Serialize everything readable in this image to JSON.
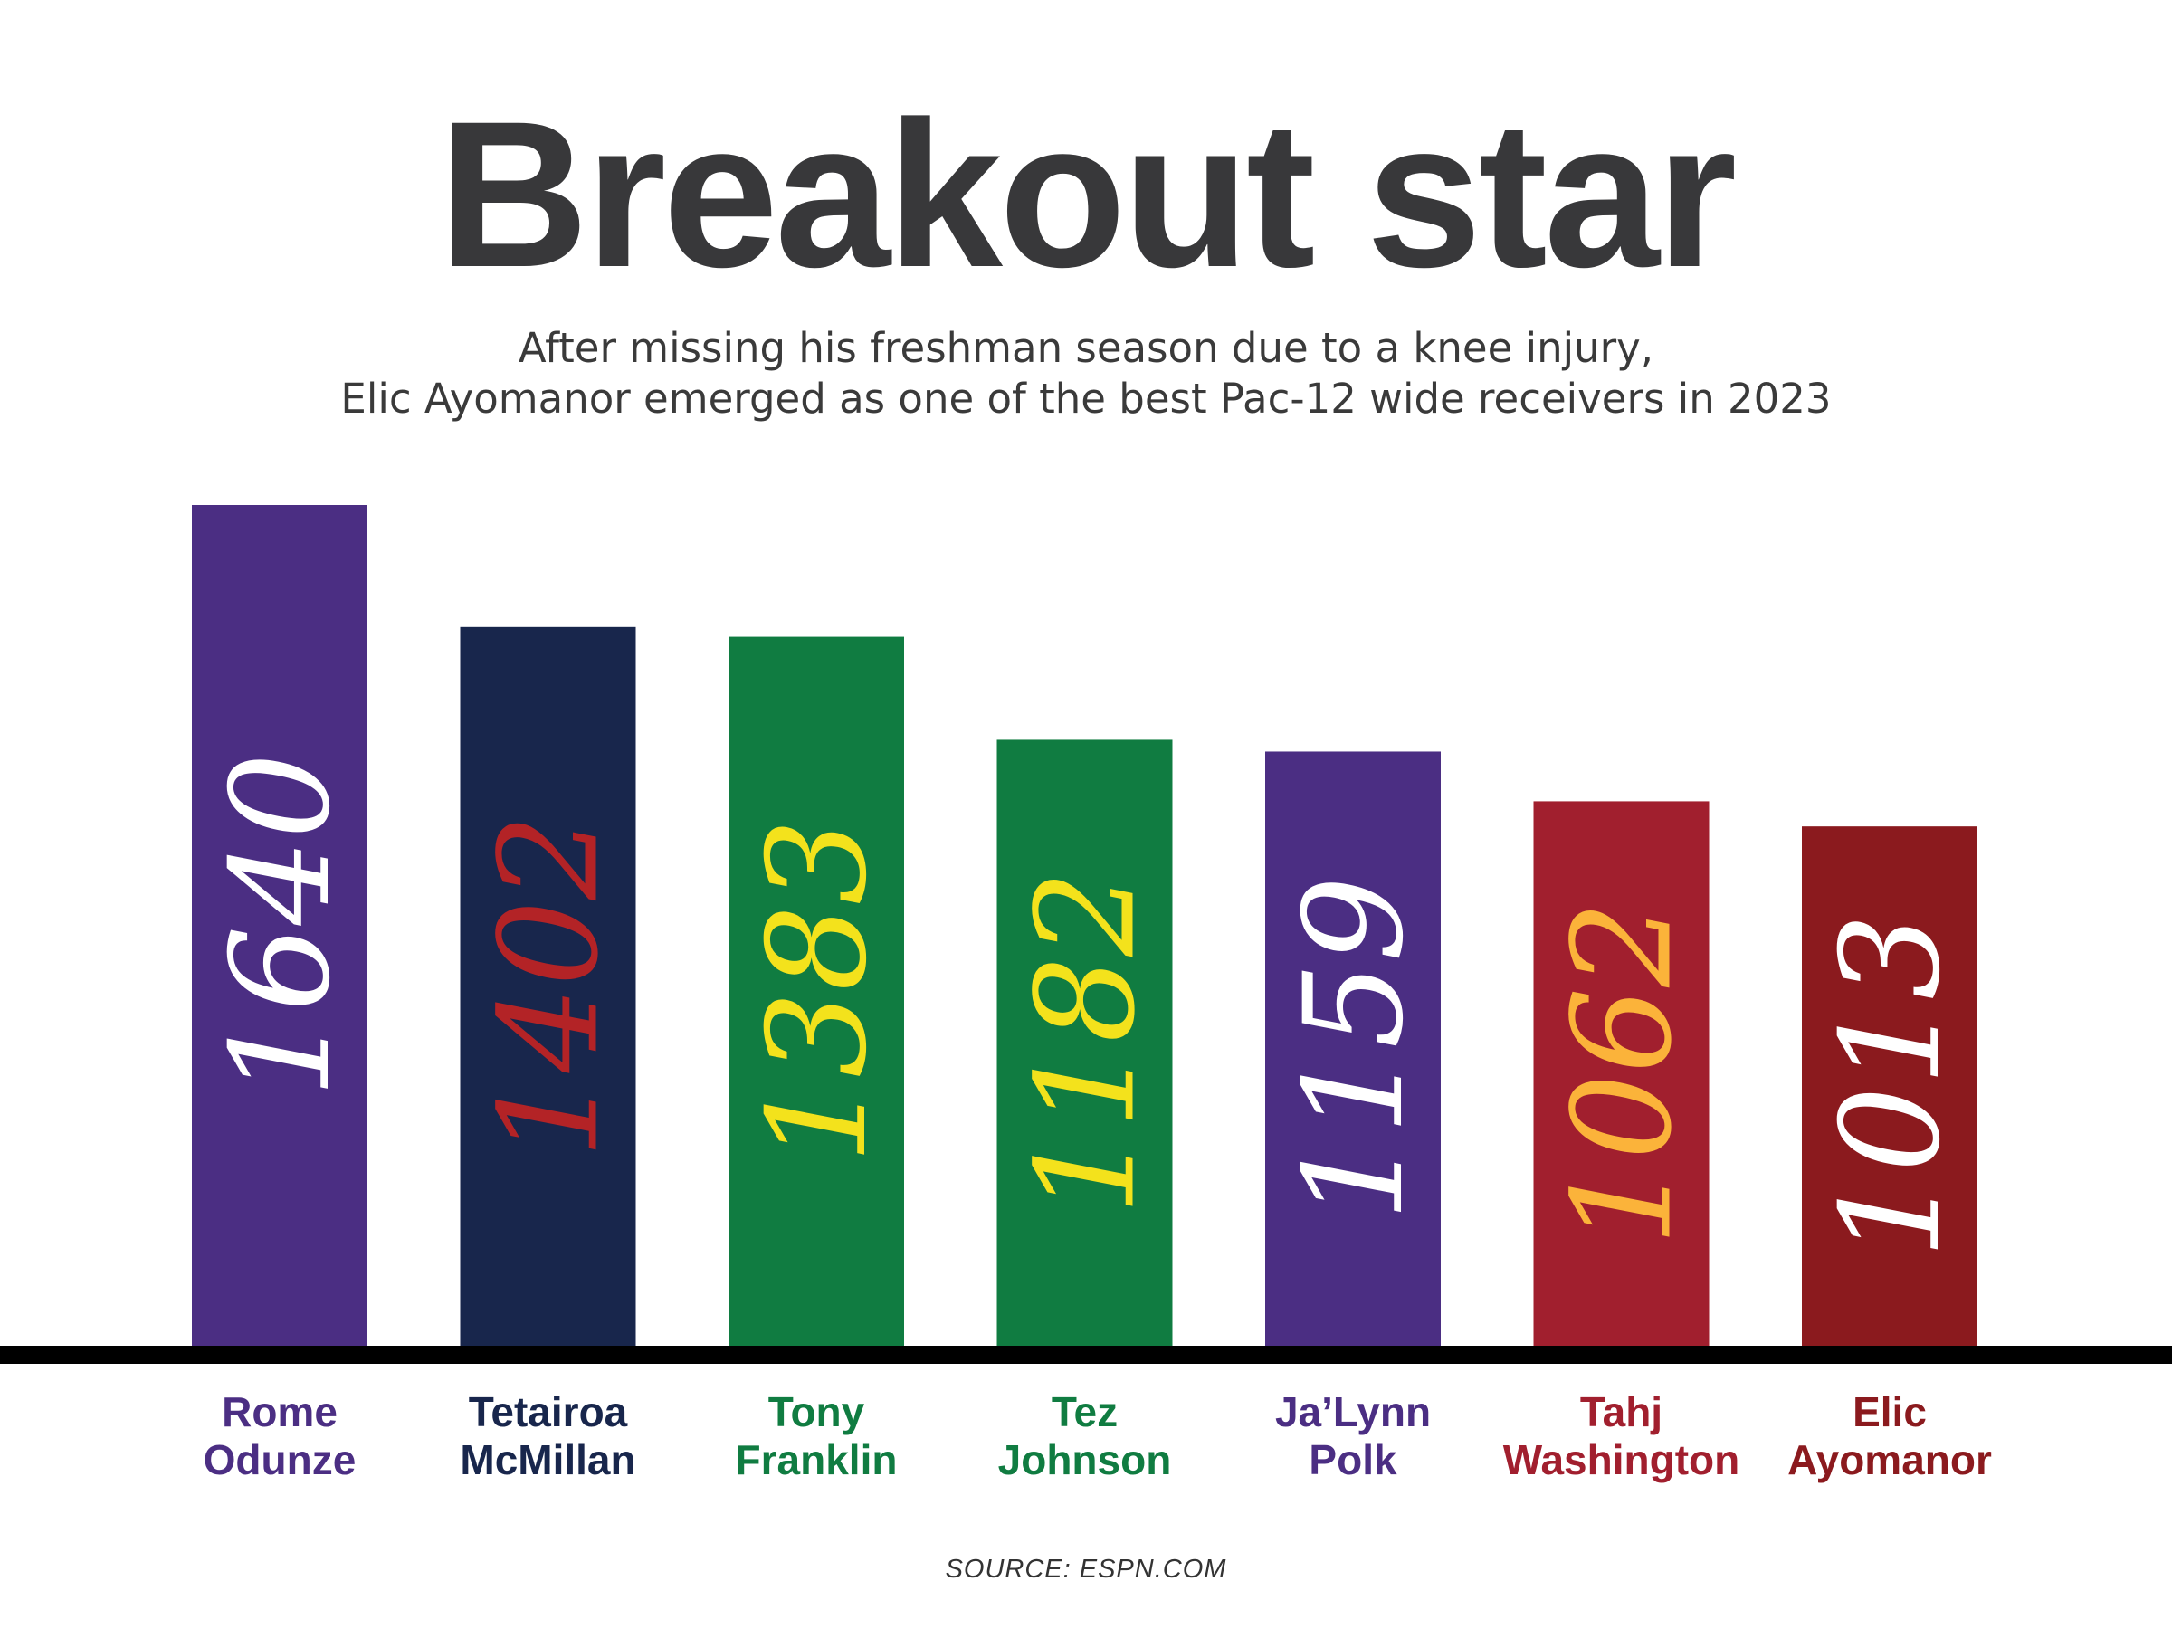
{
  "chart_data": {
    "type": "bar",
    "title": "Breakout star",
    "subtitle_lines": [
      "After missing his freshman season due to a knee injury,",
      "Elic Ayomanor emerged as one of the best Pac-12 wide receivers in 2023"
    ],
    "categories": [
      [
        "Rome",
        "Odunze"
      ],
      [
        "Tetairoa",
        "McMillan"
      ],
      [
        "Tony",
        "Franklin"
      ],
      [
        "Tez",
        "Johnson"
      ],
      [
        "Ja’Lynn",
        "Polk"
      ],
      [
        "Tahj",
        "Washington"
      ],
      [
        "Elic",
        "Ayomanor"
      ]
    ],
    "values": [
      1640,
      1402,
      1383,
      1182,
      1159,
      1062,
      1013
    ],
    "bar_colors": [
      "#4b2e83",
      "#18264c",
      "#107c41",
      "#107c41",
      "#4b2e83",
      "#a11f2e",
      "#8b1a1e"
    ],
    "value_label_colors": [
      "#ffffff",
      "#b32326",
      "#f3e21c",
      "#f3e21c",
      "#ffffff",
      "#fbb33a",
      "#ffffff"
    ],
    "name_colors": [
      "#4b2e83",
      "#18264c",
      "#107c41",
      "#107c41",
      "#4b2e83",
      "#a11f2e",
      "#8b1a1e"
    ],
    "axis_color": "#000000",
    "grid": false,
    "legend": "none",
    "source": "SOURCE: ESPN.COM"
  }
}
